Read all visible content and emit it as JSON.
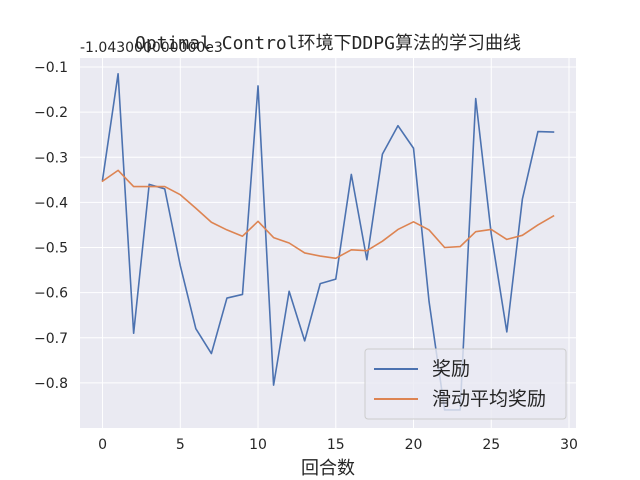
{
  "chart_data": {
    "type": "line",
    "title": "Optimal Control环境下DDPG算法的学习曲线",
    "xlabel": "回合数",
    "ylabel": "",
    "y_offset_label": "-1.043000000000e3",
    "xlim": [
      -1.45,
      30.45
    ],
    "ylim": [
      -0.9,
      -0.08
    ],
    "x_ticks": [
      0,
      5,
      10,
      15,
      20,
      25,
      30
    ],
    "y_ticks": [
      -0.1,
      -0.2,
      -0.3,
      -0.4,
      -0.5,
      -0.6,
      -0.7,
      -0.8
    ],
    "grid": true,
    "legend_position": "lower right",
    "x": [
      0,
      1,
      2,
      3,
      4,
      5,
      6,
      7,
      8,
      9,
      10,
      11,
      12,
      13,
      14,
      15,
      16,
      17,
      18,
      19,
      20,
      21,
      22,
      23,
      24,
      25,
      26,
      27,
      28,
      29
    ],
    "series": [
      {
        "name": "奖励",
        "color": "#4c72b0",
        "values": [
          -0.35,
          -0.115,
          -0.69,
          -0.36,
          -0.37,
          -0.54,
          -0.68,
          -0.735,
          -0.612,
          -0.604,
          -0.142,
          -0.805,
          -0.597,
          -0.707,
          -0.58,
          -0.57,
          -0.338,
          -0.527,
          -0.293,
          -0.23,
          -0.28,
          -0.62,
          -0.86,
          -0.86,
          -0.17,
          -0.47,
          -0.687,
          -0.393,
          -0.243,
          -0.244
        ]
      },
      {
        "name": "滑动平均奖励",
        "color": "#dd8452",
        "values": [
          -0.353,
          -0.329,
          -0.365,
          -0.365,
          -0.365,
          -0.383,
          -0.413,
          -0.444,
          -0.461,
          -0.475,
          -0.442,
          -0.478,
          -0.49,
          -0.512,
          -0.519,
          -0.524,
          -0.505,
          -0.507,
          -0.486,
          -0.46,
          -0.443,
          -0.461,
          -0.5,
          -0.498,
          -0.465,
          -0.46,
          -0.482,
          -0.473,
          -0.45,
          -0.43
        ]
      }
    ]
  }
}
